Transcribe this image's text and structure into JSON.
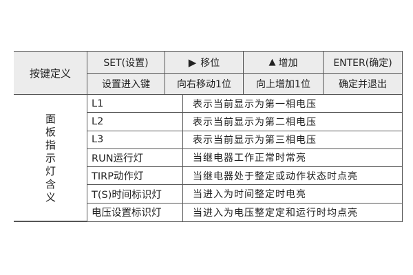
{
  "header": {
    "row_label": "按键定义",
    "keys": [
      {
        "name": "SET(设置)",
        "desc": "设置进入键"
      },
      {
        "icon": "right-triangle-icon",
        "glyph": "▶",
        "name": "移位",
        "desc": "向右移动1位"
      },
      {
        "icon": "up-triangle-icon",
        "glyph": "▲",
        "name": "增加",
        "desc": "向上增加1位"
      },
      {
        "name": "ENTER(确定)",
        "desc": "确定并退出"
      }
    ]
  },
  "panel": {
    "label_chars": [
      "面",
      "板",
      "指",
      "示",
      "灯",
      "含",
      "义"
    ],
    "rows": [
      {
        "name": "L1",
        "desc": "表示当前显示为第一相电压"
      },
      {
        "name": "L2",
        "desc": "表示当前显示为第二相电压"
      },
      {
        "name": "L3",
        "desc": "表示当前显示为第三相电压"
      },
      {
        "name": "RUN运行灯",
        "desc": "当继电器工作正常时常亮"
      },
      {
        "name": "TIRP动作灯",
        "desc": "当继电器处于整定或动作状态时点亮"
      },
      {
        "name": "T(S)时间标识灯",
        "desc": "当进入为时间整定时电亮"
      },
      {
        "name": "电压设置标识灯",
        "desc": "当进入为电压整定定和运行时均点亮"
      }
    ]
  }
}
